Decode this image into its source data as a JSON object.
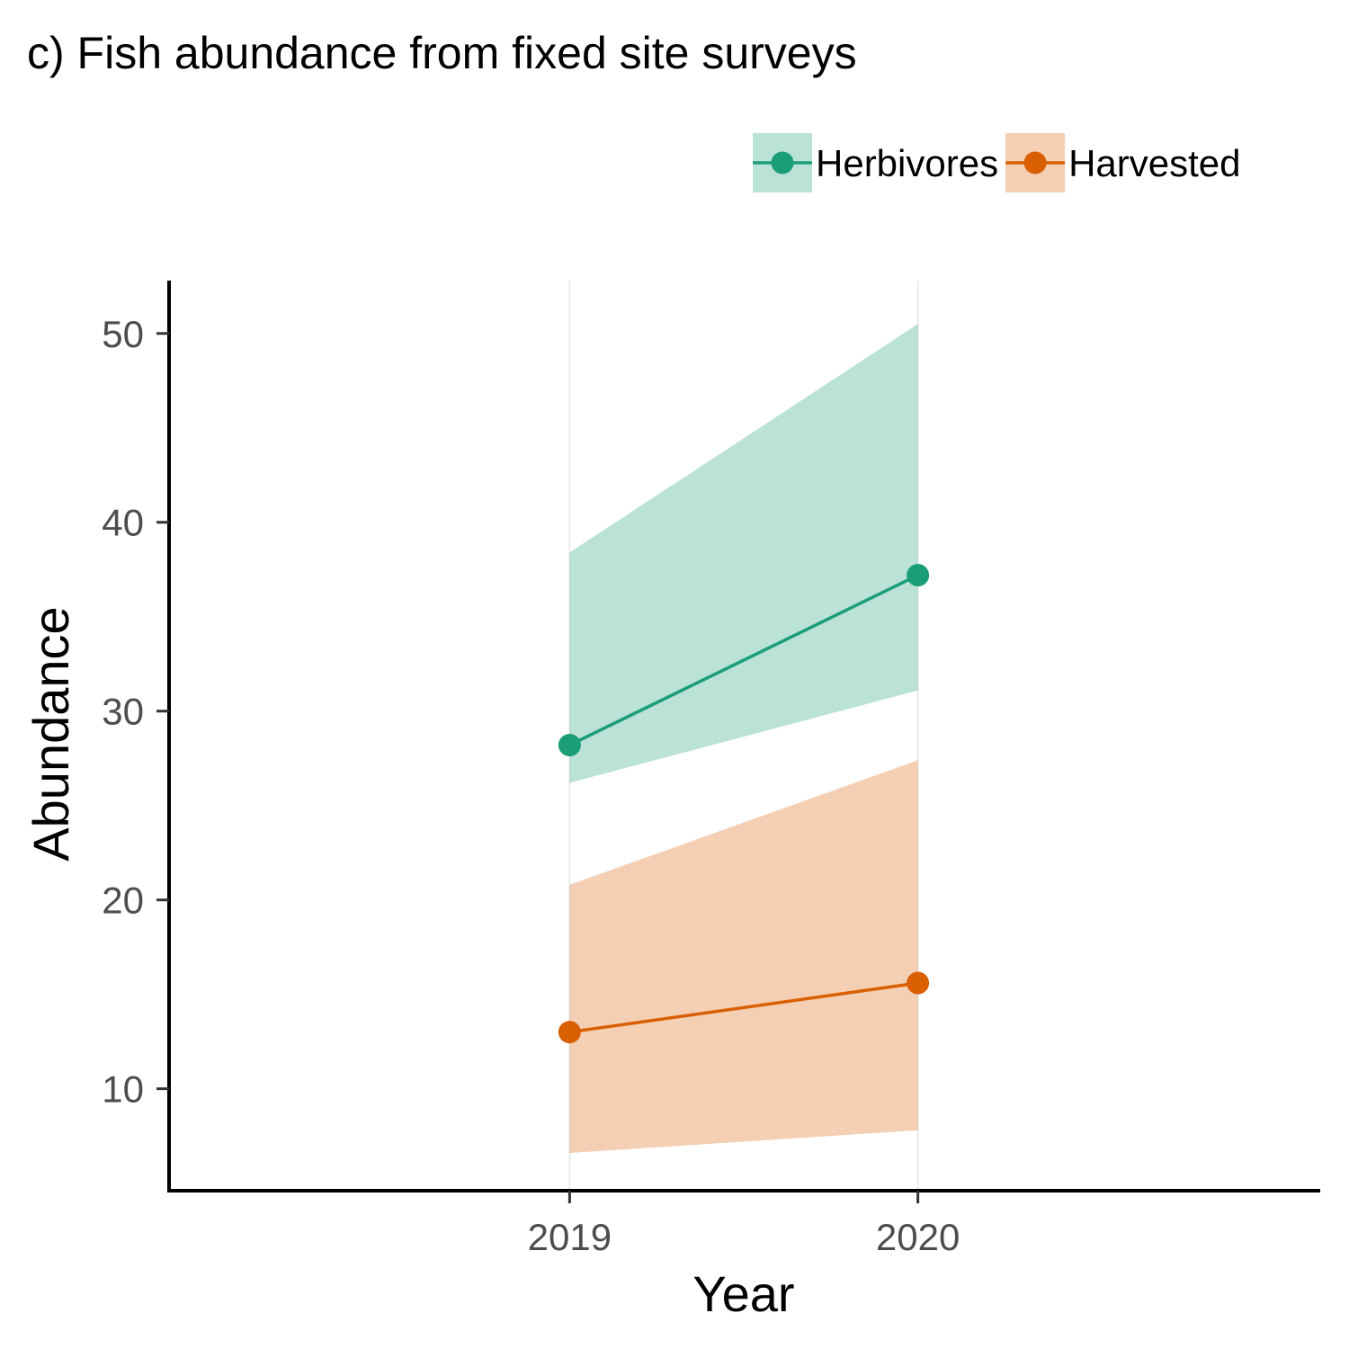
{
  "chart_data": {
    "type": "line",
    "title": "c) Fish abundance from fixed site surveys",
    "xlabel": "Year",
    "ylabel": "Abundance",
    "categories": [
      "2019",
      "2020"
    ],
    "y_ticks": [
      10,
      20,
      30,
      40,
      50
    ],
    "ylim": [
      4.6,
      52.8
    ],
    "grid": "vertical major gridlines only",
    "legend_position": "top-right",
    "series": [
      {
        "name": "Herbivores",
        "color": "#1b9e77",
        "values": [
          28.2,
          37.2
        ],
        "lower": [
          26.2,
          31.1
        ],
        "upper": [
          38.4,
          50.5
        ]
      },
      {
        "name": "Harvested",
        "color": "#d95f02",
        "values": [
          13.0,
          15.6
        ],
        "lower": [
          6.6,
          7.8
        ],
        "upper": [
          20.8,
          27.4
        ]
      }
    ]
  }
}
